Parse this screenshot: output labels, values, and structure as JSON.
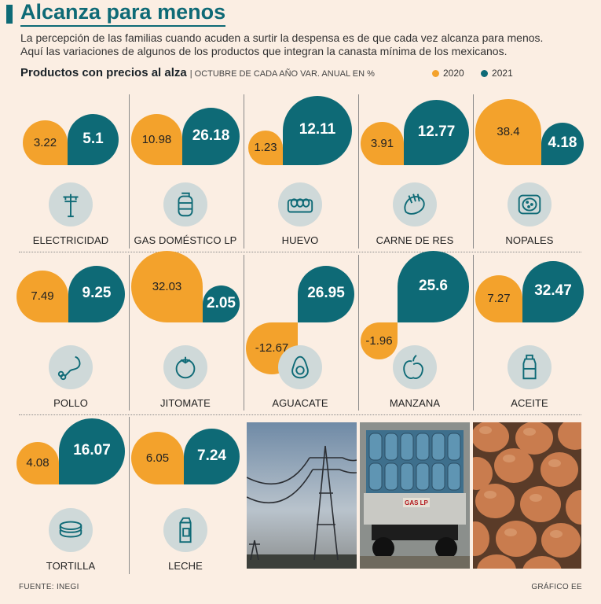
{
  "header": {
    "title": "Alcanza para menos",
    "intro_line1": "La percepción de las familias cuando acuden a surtir la despensa es de que cada vez alcanza para menos.",
    "intro_line2": "Aquí las variaciones de algunos de los productos que integran la canasta mínima de los mexicanos.",
    "subtitle_bold": "Productos con precios al alza",
    "subtitle_note": "| OCTUBRE  DE CADA AÑO VAR. ANUAL EN %"
  },
  "legend": [
    {
      "label": "2020",
      "color": "#f3a22c"
    },
    {
      "label": "2021",
      "color": "#0e6a76"
    }
  ],
  "chart_data": {
    "type": "bar",
    "title": "Productos con precios al alza",
    "subtitle": "OCTUBRE DE CADA AÑO VAR. ANUAL EN %",
    "categories": [
      "ELECTRICIDAD",
      "GAS DOMÉSTICO LP",
      "HUEVO",
      "CARNE DE RES",
      "NOPALES",
      "POLLO",
      "JITOMATE",
      "AGUACATE",
      "MANZANA",
      "ACEITE",
      "TORTILLA",
      "LECHE"
    ],
    "series": [
      {
        "name": "2020",
        "values": [
          3.22,
          10.98,
          1.23,
          3.91,
          38.4,
          7.49,
          32.03,
          -12.67,
          -1.96,
          7.27,
          4.08,
          6.05
        ]
      },
      {
        "name": "2021",
        "values": [
          5.1,
          26.18,
          12.11,
          12.77,
          4.18,
          9.25,
          2.05,
          26.95,
          25.6,
          32.47,
          16.07,
          7.24
        ]
      }
    ],
    "labels_2020": [
      "3.22",
      "10.98",
      "1.23",
      "3.91",
      "38.4",
      "7.49",
      "32.03",
      "-12.67",
      "-1.96",
      "7.27",
      "4.08",
      "6.05"
    ],
    "labels_2021": [
      "5.1",
      "26.18",
      "12.11",
      "12.77",
      "4.18",
      "9.25",
      "2.05",
      "26.95",
      "25.6",
      "32.47",
      "16.07",
      "7.24"
    ],
    "icons": [
      "power-pole-icon",
      "gas-cylinder-icon",
      "eggs-icon",
      "beef-icon",
      "nopal-icon",
      "chicken-leg-icon",
      "tomato-icon",
      "avocado-icon",
      "apple-icon",
      "oil-bottle-icon",
      "tortilla-icon",
      "milk-carton-icon"
    ],
    "colors": {
      "2020": "#f3a22c",
      "2021": "#0e6a76"
    }
  },
  "photos": [
    "power-lines-photo",
    "gas-truck-photo",
    "eggs-photo"
  ],
  "footer": {
    "source": "FUENTE: INEGI",
    "credit": "GRÁFICO EE"
  }
}
